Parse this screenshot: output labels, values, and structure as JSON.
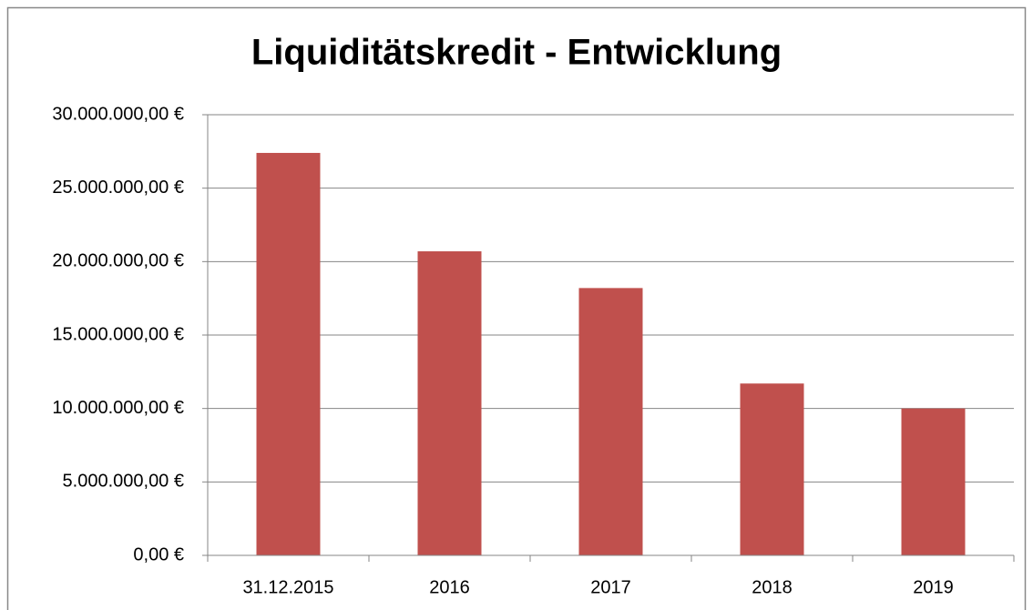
{
  "chart_data": {
    "type": "bar",
    "title": "Liquiditätskredit - Entwicklung",
    "categories": [
      "31.12.2015",
      "2016",
      "2017",
      "2018",
      "2019"
    ],
    "values": [
      27400000,
      20700000,
      18200000,
      11700000,
      10000000
    ],
    "color": "#c0504d",
    "ylim": [
      0,
      30000000
    ],
    "yticks": [
      {
        "value": 0,
        "label": "0,00 €"
      },
      {
        "value": 5000000,
        "label": "5.000.000,00 €"
      },
      {
        "value": 10000000,
        "label": "10.000.000,00 €"
      },
      {
        "value": 15000000,
        "label": "15.000.000,00 €"
      },
      {
        "value": 20000000,
        "label": "20.000.000,00 €"
      },
      {
        "value": 25000000,
        "label": "25.000.000,00 €"
      },
      {
        "value": 30000000,
        "label": "30.000.000,00 €"
      }
    ],
    "grid": true
  }
}
